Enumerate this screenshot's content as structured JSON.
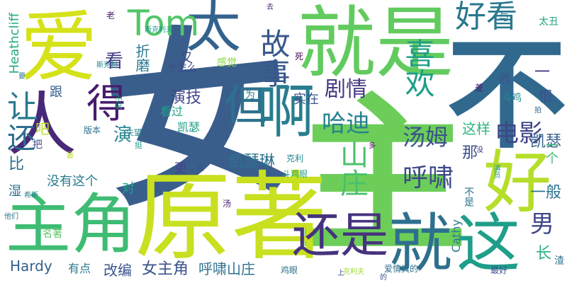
{
  "words": [
    {
      "text": "女",
      "color": "#3a5e8c"
    },
    {
      "text": "主",
      "color": "#6cce59"
    },
    {
      "text": "原著",
      "color": "#c8e020"
    },
    {
      "text": "不",
      "color": "#31688e"
    },
    {
      "text": "爱",
      "color": "#d5e21a"
    },
    {
      "text": "就是",
      "color": "#62cb5f"
    },
    {
      "text": "人",
      "color": "#482878"
    },
    {
      "text": "主角",
      "color": "#3fbc73"
    },
    {
      "text": "好",
      "color": "#b5de2b"
    },
    {
      "text": "这",
      "color": "#1f9e89"
    },
    {
      "text": "就",
      "color": "#2e6f8e"
    },
    {
      "text": "啊",
      "color": "#287d8e"
    },
    {
      "text": "还是",
      "color": "#46327e"
    },
    {
      "text": "太",
      "color": "#33638d"
    },
    {
      "text": "得",
      "color": "#481b6d"
    },
    {
      "text": "但",
      "color": "#2c728e"
    },
    {
      "text": "故事",
      "color": "#38588c"
    },
    {
      "text": "好看",
      "color": "#2a788e"
    },
    {
      "text": "Tom",
      "color": "#52c569"
    },
    {
      "text": "让",
      "color": "#2a788e"
    },
    {
      "text": "喜欢",
      "color": "#1f9e89"
    },
    {
      "text": "山庄",
      "color": "#4ac16d"
    },
    {
      "text": "电影",
      "color": "#404688"
    },
    {
      "text": "呼啸",
      "color": "#3e4989"
    },
    {
      "text": "剧情",
      "color": "#453882"
    },
    {
      "text": "汤姆",
      "color": "#3b528b"
    },
    {
      "text": "哈迪",
      "color": "#26828e"
    },
    {
      "text": "还",
      "color": "#2e6e8e"
    },
    {
      "text": "演技",
      "color": "#414487"
    },
    {
      "text": "看",
      "color": "#433e85"
    },
    {
      "text": "演",
      "color": "#25858e"
    },
    {
      "text": "男",
      "color": "#3f4788"
    },
    {
      "text": "凯瑟琳",
      "color": "#2c728e"
    },
    {
      "text": "女主角",
      "color": "#3b528b"
    },
    {
      "text": "呼啸山庄",
      "color": "#2d708e"
    },
    {
      "text": "改编",
      "color": "#3a548c"
    },
    {
      "text": "有点",
      "color": "#2a768e"
    },
    {
      "text": "Hardy",
      "color": "#34618d"
    },
    {
      "text": "没有这个",
      "color": "#297b8e"
    },
    {
      "text": "凯瑟",
      "color": "#355f8d"
    },
    {
      "text": "这样",
      "color": "#31b57b"
    },
    {
      "text": "实在",
      "color": "#3a548c"
    },
    {
      "text": "那",
      "color": "#3b518b"
    },
    {
      "text": "一般",
      "color": "#2b748e"
    },
    {
      "text": "比",
      "color": "#2d708e"
    },
    {
      "text": "对",
      "color": "#1fa188"
    },
    {
      "text": "更",
      "color": "#404588"
    },
    {
      "text": "吧",
      "color": "#b8de29"
    },
    {
      "text": "跟",
      "color": "#355f8d"
    },
    {
      "text": "一个",
      "color": "#3aba76"
    },
    {
      "text": "不是",
      "color": "#2c738e"
    },
    {
      "text": "长",
      "color": "#28ae80"
    },
    {
      "text": "一",
      "color": "#472d7b"
    },
    {
      "text": "恨",
      "color": "#3b528b"
    },
    {
      "text": "Heathcliff",
      "color": "#24aa83"
    },
    {
      "text": "折磨",
      "color": "#2a778e"
    },
    {
      "text": "又",
      "color": "#3e4a89"
    },
    {
      "text": "而",
      "color": "#3b518b"
    },
    {
      "text": "凯瑟",
      "color": "#1fa088"
    },
    {
      "text": "斗鸡",
      "color": "#23898e"
    },
    {
      "text": "Cathy",
      "color": "#2a788e"
    },
    {
      "text": "太丑",
      "color": "#22a785"
    },
    {
      "text": "与",
      "color": "#29798e"
    },
    {
      "text": "斯克利夫",
      "color": "#1f9a8a"
    },
    {
      "text": "斯克利",
      "color": "#23898e"
    },
    {
      "text": "感觉",
      "color": "#8bd646"
    },
    {
      "text": "个怎么",
      "color": "#3e4989"
    },
    {
      "text": "小说",
      "color": "#23a983"
    },
    {
      "text": "为",
      "color": "#2a788e"
    },
    {
      "text": "差",
      "color": "#481f70"
    },
    {
      "text": "看过",
      "color": "#1fa287"
    },
    {
      "text": "版本",
      "color": "#2e6e8e"
    },
    {
      "text": "湿",
      "color": "#2c718e"
    },
    {
      "text": "名著",
      "color": "#5cc863"
    },
    {
      "text": "渣",
      "color": "#2c718e"
    },
    {
      "text": "最好",
      "color": "#3b528b"
    },
    {
      "text": "爱情真的",
      "color": "#2e6f8e"
    },
    {
      "text": "克利夫",
      "color": "#a2da37"
    },
    {
      "text": "鸡眼",
      "color": "#2c738e"
    },
    {
      "text": "斗鸡眼",
      "color": "#20a386"
    },
    {
      "text": "把",
      "color": "#3e4c8a"
    },
    {
      "text": "失望",
      "color": "#25858e"
    },
    {
      "text": "挺",
      "color": "#1f9e89"
    },
    {
      "text": "希斯",
      "color": "#26828e"
    },
    {
      "text": "他们",
      "color": "#2a788e"
    },
    {
      "text": "汤",
      "color": "#482071"
    },
    {
      "text": "克利",
      "color": "#23898e"
    },
    {
      "text": "多",
      "color": "#440154"
    },
    {
      "text": "眼",
      "color": "#3b528b"
    },
    {
      "text": "没",
      "color": "#46307e"
    },
    {
      "text": "演员",
      "color": "#21918c"
    },
    {
      "text": "拍",
      "color": "#31688e"
    },
    {
      "text": "死",
      "color": "#450457"
    },
    {
      "text": "老",
      "color": "#481769"
    },
    {
      "text": "去",
      "color": "#481a6c"
    },
    {
      "text": "要",
      "color": "#2c728e"
    },
    {
      "text": "最",
      "color": "#c5e021"
    },
    {
      "text": "的",
      "color": "#3b528b"
    },
    {
      "text": "上",
      "color": "#3e4a89"
    }
  ]
}
